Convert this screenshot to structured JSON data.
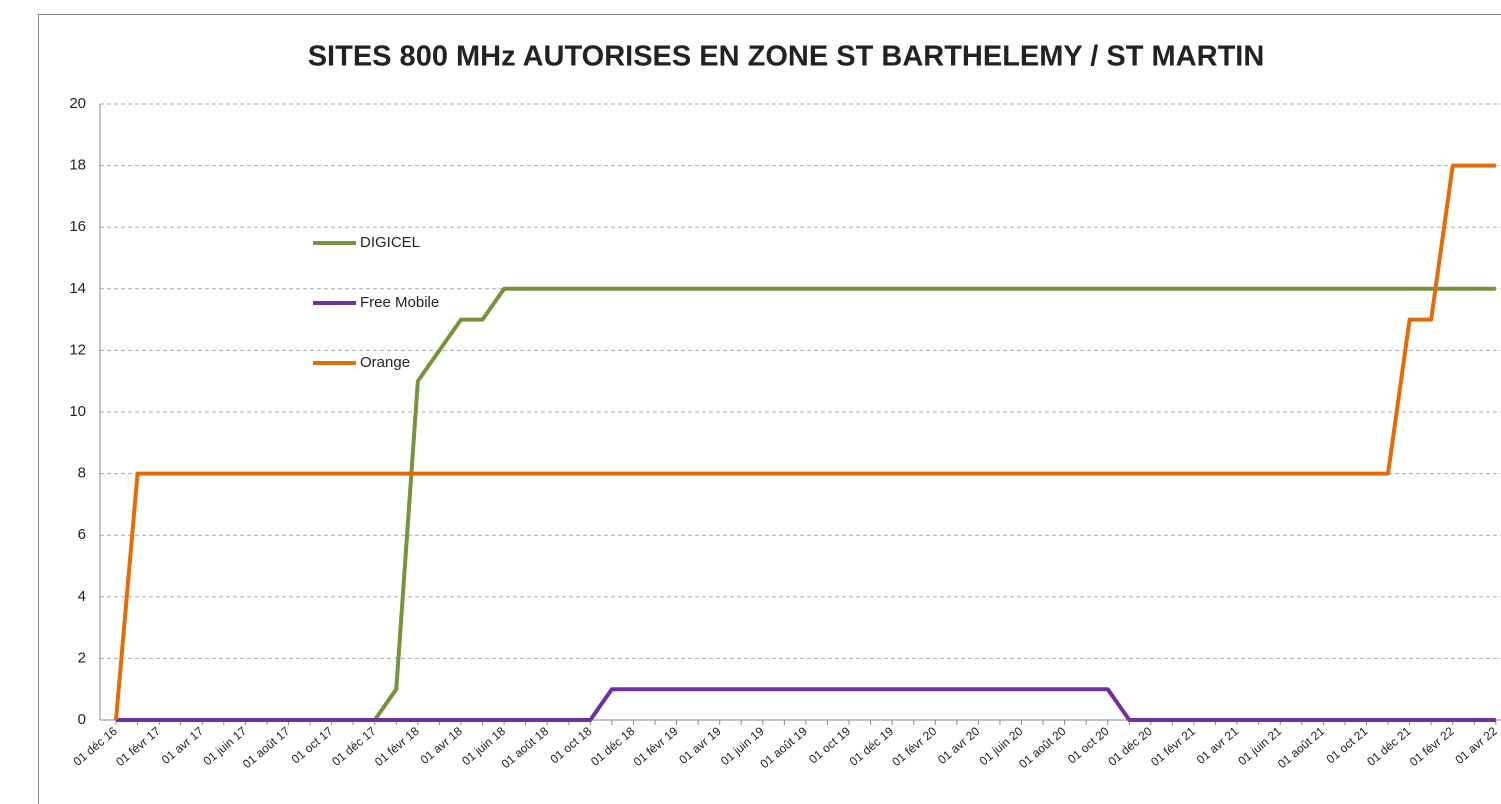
{
  "chart_data": {
    "type": "line",
    "title": "SITES 800 MHz AUTORISES EN ZONE ST BARTHELEMY / ST MARTIN",
    "categories": [
      "01 déc 16",
      null,
      "01 févr 17",
      null,
      "01 avr 17",
      null,
      "01 juin 17",
      null,
      "01 août 17",
      null,
      "01 oct 17",
      null,
      "01 déc 17",
      null,
      "01 févr 18",
      null,
      "01 avr 18",
      null,
      "01 juin 18",
      null,
      "01 août 18",
      null,
      "01 oct 18",
      null,
      "01 déc 18",
      null,
      "01 févr 19",
      null,
      "01 avr 19",
      null,
      "01 juin 19",
      null,
      "01 août 19",
      null,
      "01 oct 19",
      null,
      "01 déc 19",
      null,
      "01 févr 20",
      null,
      "01 avr 20",
      null,
      "01 juin 20",
      null,
      "01 août 20",
      null,
      "01 oct 20",
      null,
      "01 déc 20",
      null,
      "01 févr 21",
      null,
      "01 avr 21",
      null,
      "01 juin 21",
      null,
      "01 août 21",
      null,
      "01 oct 21",
      null,
      "01 déc 21",
      null,
      "01 févr 22",
      null,
      "01 avr 22"
    ],
    "series": [
      {
        "name": "DIGICEL",
        "color": "#77933c",
        "values": [
          0,
          0,
          0,
          0,
          0,
          0,
          0,
          0,
          0,
          0,
          0,
          0,
          0,
          1,
          11,
          12,
          13,
          13,
          14,
          14,
          14,
          14,
          14,
          14,
          14,
          14,
          14,
          14,
          14,
          14,
          14,
          14,
          14,
          14,
          14,
          14,
          14,
          14,
          14,
          14,
          14,
          14,
          14,
          14,
          14,
          14,
          14,
          14,
          14,
          14,
          14,
          14,
          14,
          14,
          14,
          14,
          14,
          14,
          14,
          14,
          14,
          14,
          14,
          14,
          14
        ]
      },
      {
        "name": "Free Mobile",
        "color": "#7030a0",
        "values": [
          0,
          0,
          0,
          0,
          0,
          0,
          0,
          0,
          0,
          0,
          0,
          0,
          0,
          0,
          0,
          0,
          0,
          0,
          0,
          0,
          0,
          0,
          0,
          1,
          1,
          1,
          1,
          1,
          1,
          1,
          1,
          1,
          1,
          1,
          1,
          1,
          1,
          1,
          1,
          1,
          1,
          1,
          1,
          1,
          1,
          1,
          1,
          0,
          0,
          0,
          0,
          0,
          0,
          0,
          0,
          0,
          0,
          0,
          0,
          0,
          0,
          0,
          0,
          0,
          0
        ]
      },
      {
        "name": "Orange",
        "color": "#e36c09",
        "values": [
          0,
          8,
          8,
          8,
          8,
          8,
          8,
          8,
          8,
          8,
          8,
          8,
          8,
          8,
          8,
          8,
          8,
          8,
          8,
          8,
          8,
          8,
          8,
          8,
          8,
          8,
          8,
          8,
          8,
          8,
          8,
          8,
          8,
          8,
          8,
          8,
          8,
          8,
          8,
          8,
          8,
          8,
          8,
          8,
          8,
          8,
          8,
          8,
          8,
          8,
          8,
          8,
          8,
          8,
          8,
          8,
          8,
          8,
          8,
          8,
          13,
          13,
          18,
          18,
          18
        ]
      }
    ],
    "ylim": [
      0,
      20
    ],
    "yticks": [
      0,
      2,
      4,
      6,
      8,
      10,
      12,
      14,
      16,
      18,
      20
    ],
    "grid": true
  }
}
